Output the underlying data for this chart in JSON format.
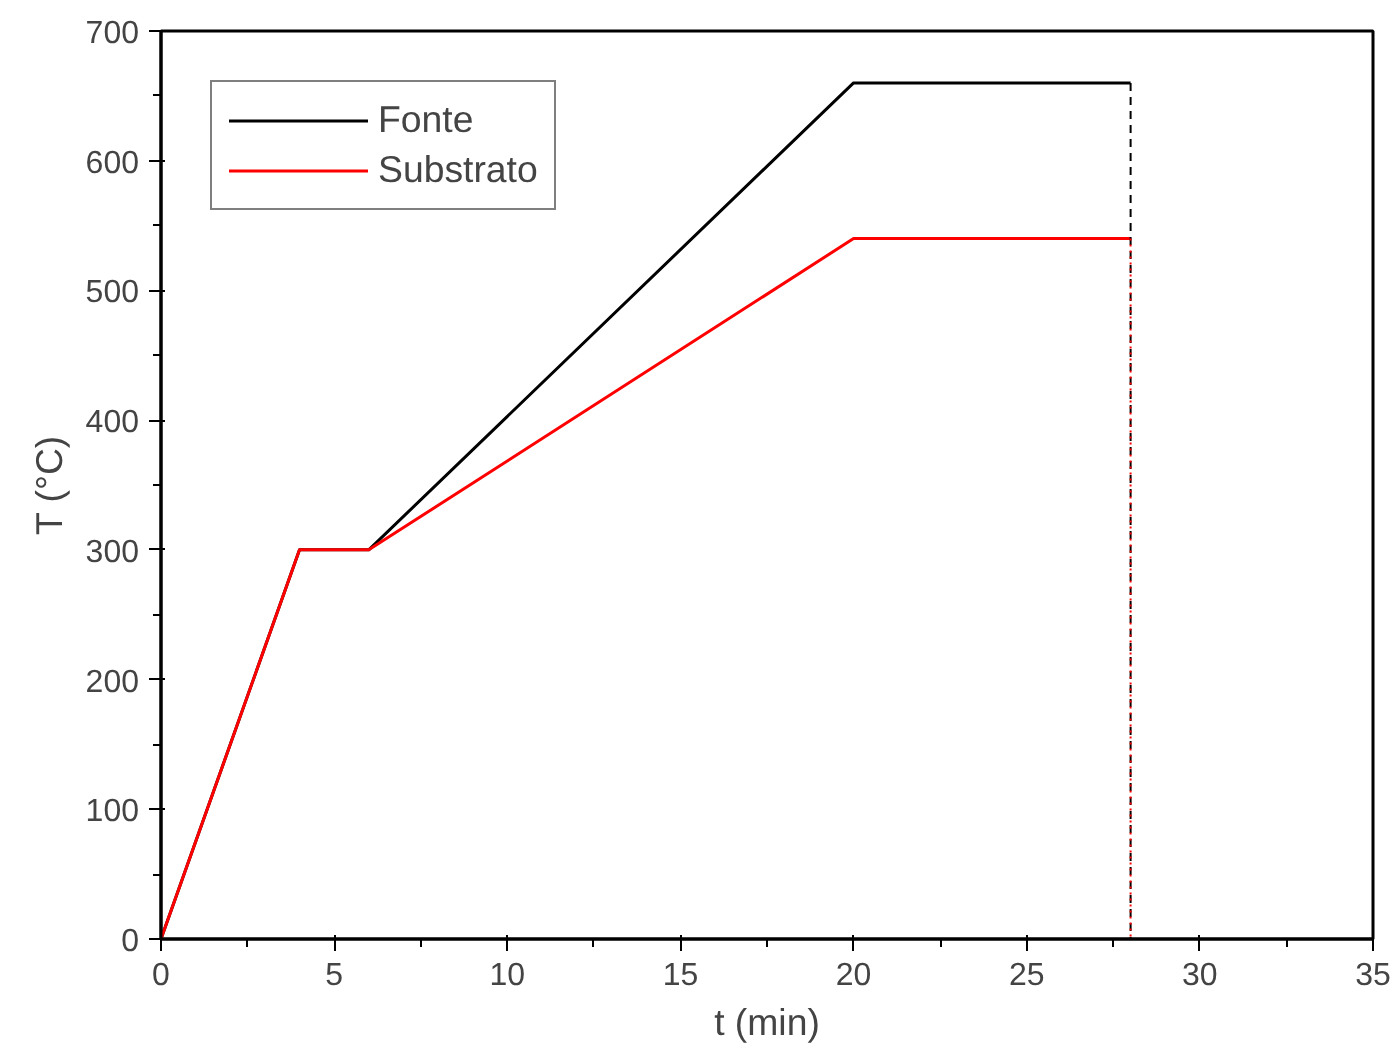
{
  "chart_data": {
    "type": "line",
    "xlabel": "t (min)",
    "ylabel": "T (°C)",
    "xlim": [
      0,
      35
    ],
    "xticks": [
      0,
      5,
      10,
      15,
      20,
      25,
      30,
      35
    ],
    "ylim": [
      0,
      700
    ],
    "yticks": [
      0,
      100,
      200,
      300,
      400,
      500,
      600,
      700
    ],
    "grid": false,
    "legend": "top left",
    "marker": "none",
    "line_style": "solid",
    "series": [
      {
        "name": "Fonte",
        "color": "#000000",
        "x": [
          0,
          4,
          6,
          20,
          28
        ],
        "values": [
          0,
          300,
          300,
          660,
          660
        ]
      },
      {
        "name": "Substrato",
        "color": "#ff0000",
        "x": [
          0,
          4,
          6,
          20,
          28
        ],
        "values": [
          0,
          300,
          300,
          540,
          540
        ]
      },
      {
        "color": "#000000",
        "x": [
          28,
          28
        ],
        "values": [
          660,
          0
        ],
        "line_style": "dashed"
      },
      {
        "color": "#ff0000",
        "x": [
          28,
          28
        ],
        "values": [
          540,
          0
        ],
        "line_style": "dotted"
      }
    ]
  }
}
